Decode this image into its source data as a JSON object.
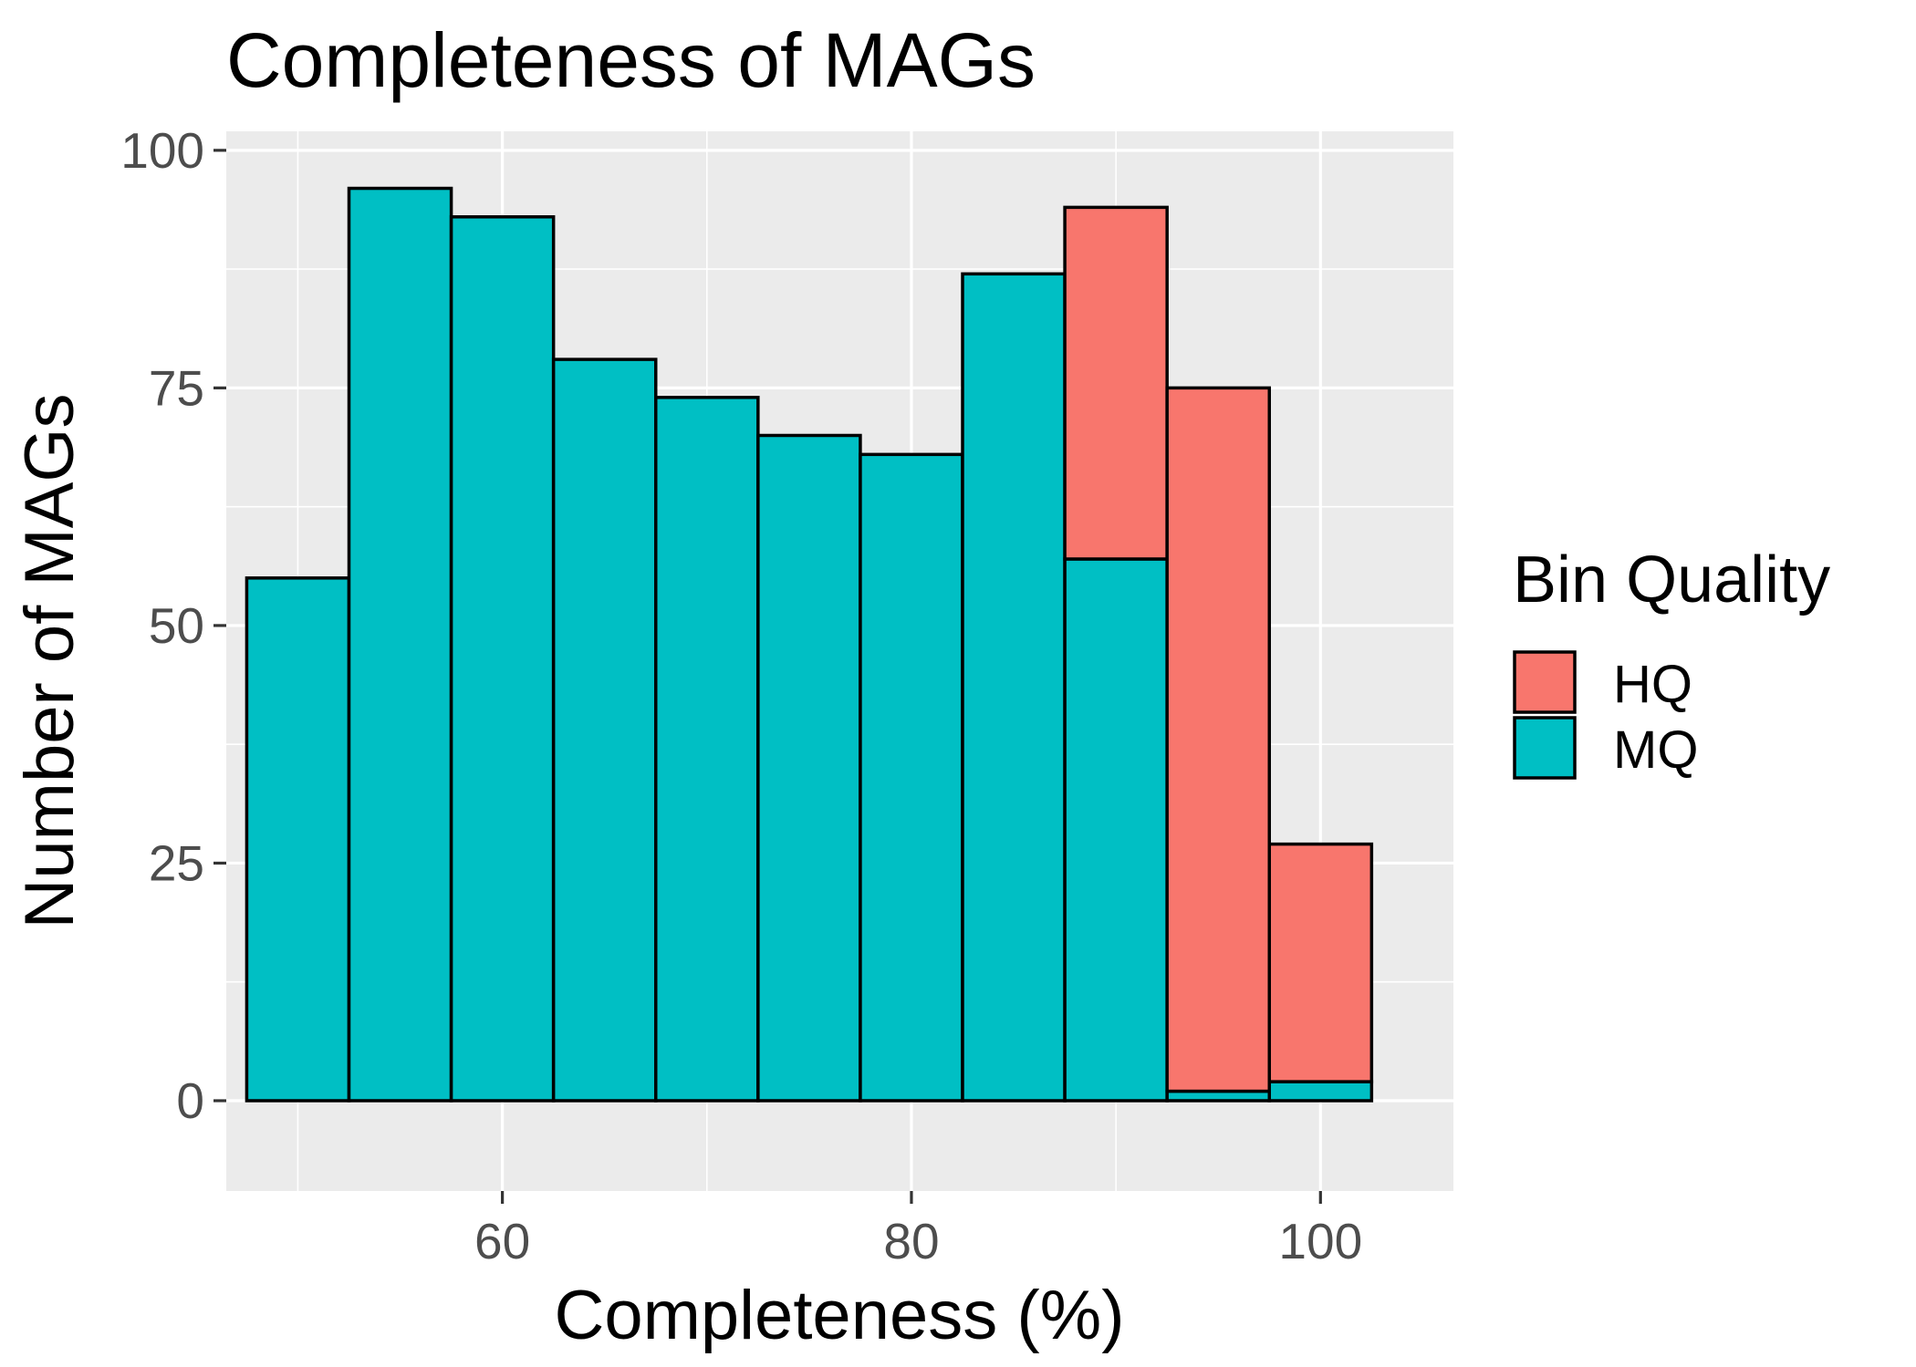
{
  "chart_data": {
    "type": "bar",
    "stacked": true,
    "histogram": true,
    "title": "Completeness of MAGs",
    "xlabel": "Completeness (%)",
    "ylabel": "Number of MAGs",
    "xlim": [
      46.5,
      106.5
    ],
    "ylim": [
      -9.5,
      102
    ],
    "xticks": [
      60,
      80,
      100
    ],
    "xtick_labels": [
      "60",
      "80",
      "100"
    ],
    "yticks": [
      0,
      25,
      50,
      75,
      100
    ],
    "ytick_labels": [
      "0",
      "25",
      "50",
      "75",
      "100"
    ],
    "bin_width": 5,
    "x": [
      50,
      55,
      60,
      65,
      70,
      75,
      80,
      85,
      90,
      95,
      100
    ],
    "series": [
      {
        "name": "HQ",
        "color": "#F8766D",
        "values": [
          0,
          0,
          0,
          0,
          0,
          0,
          0,
          0,
          37,
          74,
          25
        ]
      },
      {
        "name": "MQ",
        "color": "#00BFC4",
        "values": [
          55,
          96,
          93,
          78,
          74,
          70,
          68,
          87,
          57,
          1,
          2
        ]
      }
    ],
    "legend": {
      "title": "Bin Quality",
      "position": "right"
    },
    "grid": true,
    "panel_background": "#EBEBEB",
    "grid_color": "#FFFFFF",
    "bar_outline": "#000000"
  }
}
